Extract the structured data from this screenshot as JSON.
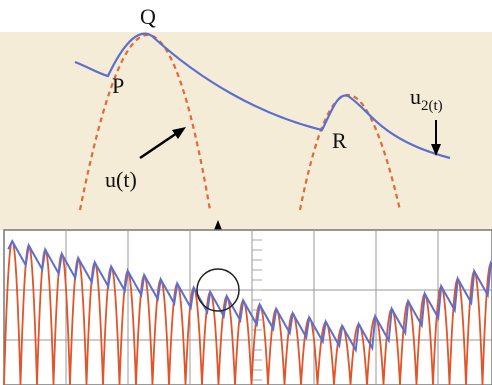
{
  "labels": {
    "q": "Q",
    "p": "P",
    "r": "R",
    "u_t": "u(t)",
    "u2_base": "u",
    "u2_sub": "2(t)"
  }
}
